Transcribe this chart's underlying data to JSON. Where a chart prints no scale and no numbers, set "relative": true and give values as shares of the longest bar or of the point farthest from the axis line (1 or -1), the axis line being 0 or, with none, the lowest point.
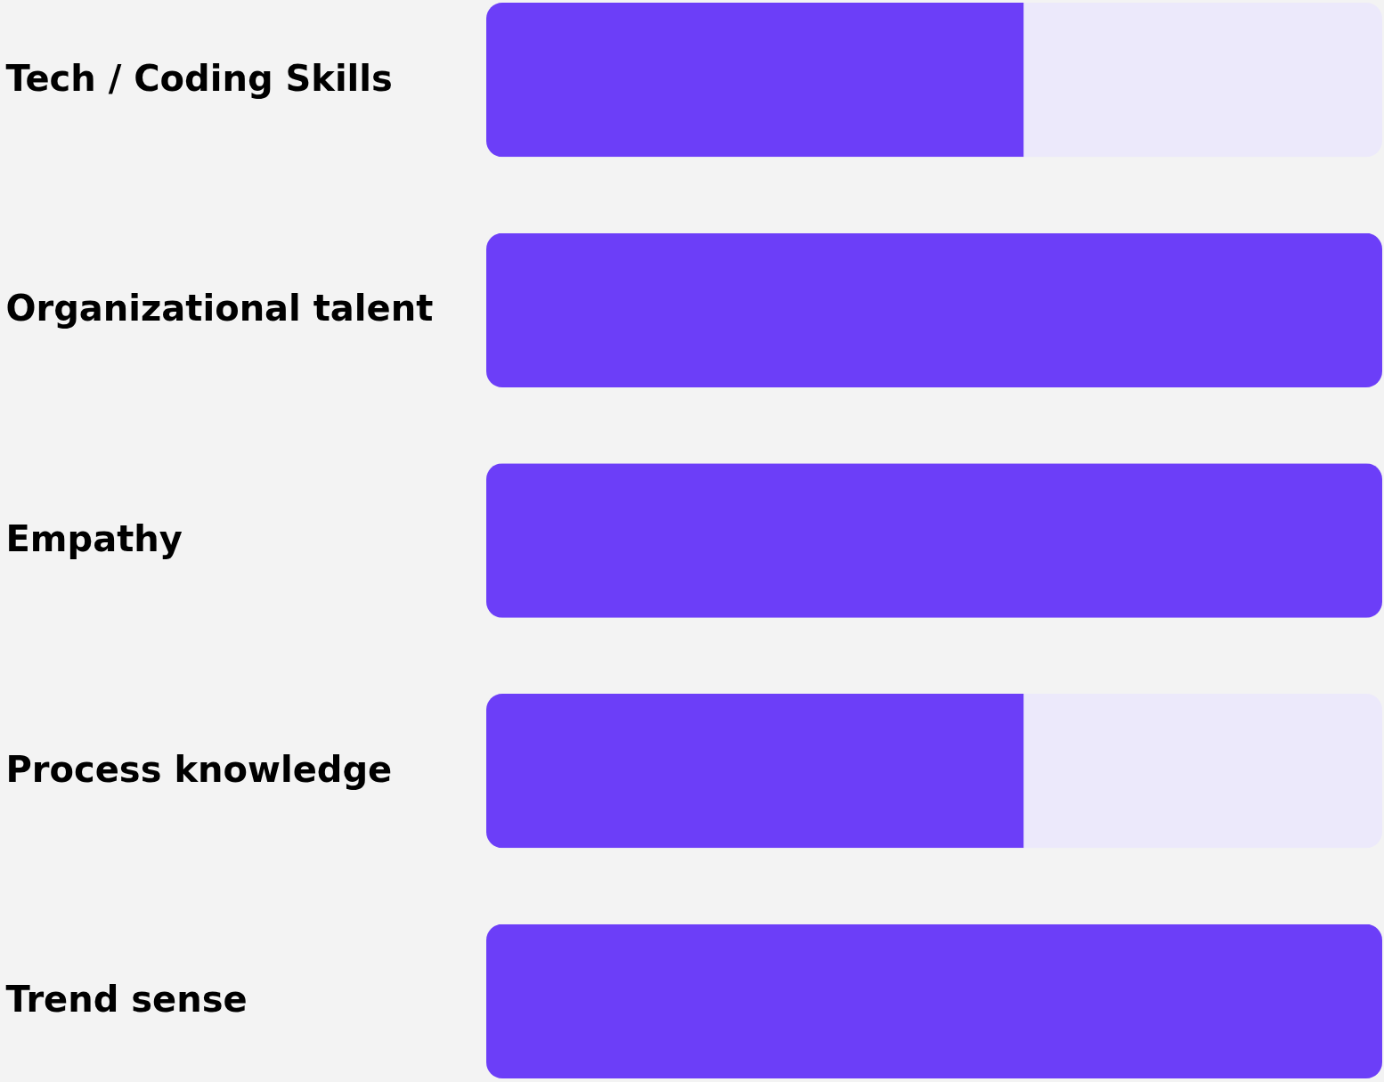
{
  "chart_data": {
    "type": "bar",
    "orientation": "horizontal",
    "stacked": true,
    "relative": true,
    "categories": [
      "Tech / Coding Skills",
      "Organizational talent",
      "Empathy",
      "Process knowledge",
      "Trend sense"
    ],
    "series": [
      {
        "color": "#6c3ef8",
        "values": [
          0.6,
          1,
          1,
          0.6,
          1
        ]
      },
      {
        "color": "#ece9fb",
        "values": [
          0.4,
          0,
          0,
          0.4,
          0
        ]
      }
    ]
  }
}
